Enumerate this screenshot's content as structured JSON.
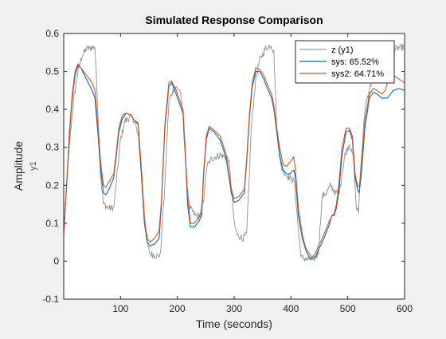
{
  "chart_data": {
    "type": "line",
    "title": "Simulated Response Comparison",
    "xlabel": "Time (seconds)",
    "ylabel": "Amplitude",
    "ylabel_secondary": "y1",
    "xlim": [
      0,
      600
    ],
    "ylim": [
      -0.1,
      0.6
    ],
    "xticks": [
      100,
      200,
      300,
      400,
      500,
      600
    ],
    "yticks": [
      -0.1,
      0,
      0.1,
      0.2,
      0.3,
      0.4,
      0.5,
      0.6
    ],
    "grid": false,
    "legend_position": "top-right",
    "series": [
      {
        "name": "z (y1)",
        "color": "#999999",
        "noisy": true,
        "points": [
          [
            0,
            0.07
          ],
          [
            6,
            0.22
          ],
          [
            12,
            0.34
          ],
          [
            18,
            0.43
          ],
          [
            25,
            0.5
          ],
          [
            32,
            0.54
          ],
          [
            40,
            0.56
          ],
          [
            55,
            0.565
          ],
          [
            60,
            0.4
          ],
          [
            65,
            0.22
          ],
          [
            70,
            0.15
          ],
          [
            80,
            0.14
          ],
          [
            88,
            0.14
          ],
          [
            92,
            0.2
          ],
          [
            100,
            0.32
          ],
          [
            108,
            0.37
          ],
          [
            118,
            0.38
          ],
          [
            125,
            0.37
          ],
          [
            132,
            0.32
          ],
          [
            140,
            0.17
          ],
          [
            146,
            0.05
          ],
          [
            152,
            0.02
          ],
          [
            160,
            0.015
          ],
          [
            170,
            0.015
          ],
          [
            178,
            0.2
          ],
          [
            185,
            0.42
          ],
          [
            195,
            0.46
          ],
          [
            205,
            0.45
          ],
          [
            210,
            0.38
          ],
          [
            216,
            0.22
          ],
          [
            222,
            0.14
          ],
          [
            232,
            0.12
          ],
          [
            240,
            0.12
          ],
          [
            246,
            0.16
          ],
          [
            252,
            0.25
          ],
          [
            260,
            0.27
          ],
          [
            275,
            0.28
          ],
          [
            290,
            0.27
          ],
          [
            295,
            0.2
          ],
          [
            300,
            0.1
          ],
          [
            305,
            0.07
          ],
          [
            315,
            0.06
          ],
          [
            322,
            0.07
          ],
          [
            326,
            0.2
          ],
          [
            330,
            0.35
          ],
          [
            338,
            0.48
          ],
          [
            345,
            0.53
          ],
          [
            355,
            0.56
          ],
          [
            365,
            0.57
          ],
          [
            370,
            0.55
          ],
          [
            375,
            0.35
          ],
          [
            382,
            0.25
          ],
          [
            390,
            0.23
          ],
          [
            398,
            0.22
          ],
          [
            406,
            0.21
          ],
          [
            412,
            0.1
          ],
          [
            418,
            0.01
          ],
          [
            428,
            0.005
          ],
          [
            440,
            0.005
          ],
          [
            448,
            0.02
          ],
          [
            455,
            0.17
          ],
          [
            462,
            0.18
          ],
          [
            470,
            0.2
          ],
          [
            478,
            0.18
          ],
          [
            484,
            0.18
          ],
          [
            488,
            0.21
          ],
          [
            495,
            0.28
          ],
          [
            503,
            0.31
          ],
          [
            510,
            0.27
          ],
          [
            515,
            0.14
          ],
          [
            519,
            0.13
          ],
          [
            522,
            0.23
          ],
          [
            530,
            0.4
          ],
          [
            540,
            0.46
          ],
          [
            548,
            0.52
          ],
          [
            555,
            0.54
          ],
          [
            570,
            0.55
          ],
          [
            585,
            0.56
          ],
          [
            600,
            0.565
          ]
        ]
      },
      {
        "name": "sys: 65.52%",
        "color": "#0072BD",
        "noisy": false,
        "points": [
          [
            0,
            0.07
          ],
          [
            5,
            0.2
          ],
          [
            10,
            0.33
          ],
          [
            15,
            0.43
          ],
          [
            20,
            0.49
          ],
          [
            25,
            0.515
          ],
          [
            30,
            0.51
          ],
          [
            40,
            0.48
          ],
          [
            50,
            0.45
          ],
          [
            55,
            0.43
          ],
          [
            60,
            0.34
          ],
          [
            65,
            0.24
          ],
          [
            70,
            0.18
          ],
          [
            74,
            0.175
          ],
          [
            80,
            0.19
          ],
          [
            88,
            0.22
          ],
          [
            92,
            0.27
          ],
          [
            97,
            0.34
          ],
          [
            103,
            0.375
          ],
          [
            110,
            0.39
          ],
          [
            118,
            0.385
          ],
          [
            125,
            0.37
          ],
          [
            131,
            0.36
          ],
          [
            137,
            0.22
          ],
          [
            142,
            0.1
          ],
          [
            147,
            0.05
          ],
          [
            152,
            0.04
          ],
          [
            160,
            0.045
          ],
          [
            168,
            0.06
          ],
          [
            172,
            0.15
          ],
          [
            178,
            0.35
          ],
          [
            185,
            0.46
          ],
          [
            190,
            0.47
          ],
          [
            198,
            0.44
          ],
          [
            205,
            0.41
          ],
          [
            210,
            0.39
          ],
          [
            214,
            0.28
          ],
          [
            218,
            0.15
          ],
          [
            223,
            0.09
          ],
          [
            230,
            0.09
          ],
          [
            238,
            0.105
          ],
          [
            243,
            0.12
          ],
          [
            246,
            0.22
          ],
          [
            251,
            0.32
          ],
          [
            256,
            0.35
          ],
          [
            265,
            0.34
          ],
          [
            275,
            0.32
          ],
          [
            282,
            0.29
          ],
          [
            286,
            0.27
          ],
          [
            290,
            0.23
          ],
          [
            295,
            0.18
          ],
          [
            300,
            0.155
          ],
          [
            308,
            0.16
          ],
          [
            318,
            0.18
          ],
          [
            322,
            0.26
          ],
          [
            327,
            0.38
          ],
          [
            332,
            0.46
          ],
          [
            338,
            0.5
          ],
          [
            345,
            0.5
          ],
          [
            352,
            0.48
          ],
          [
            360,
            0.45
          ],
          [
            366,
            0.43
          ],
          [
            370,
            0.4
          ],
          [
            375,
            0.34
          ],
          [
            380,
            0.28
          ],
          [
            386,
            0.24
          ],
          [
            392,
            0.23
          ],
          [
            398,
            0.23
          ],
          [
            405,
            0.24
          ],
          [
            408,
            0.22
          ],
          [
            413,
            0.12
          ],
          [
            420,
            0.06
          ],
          [
            426,
            0.03
          ],
          [
            432,
            0.01
          ],
          [
            437,
            0.005
          ],
          [
            443,
            0.01
          ],
          [
            448,
            0.03
          ],
          [
            452,
            0.04
          ],
          [
            458,
            0.06
          ],
          [
            466,
            0.09
          ],
          [
            472,
            0.12
          ],
          [
            476,
            0.12
          ],
          [
            480,
            0.14
          ],
          [
            484,
            0.18
          ],
          [
            490,
            0.28
          ],
          [
            497,
            0.34
          ],
          [
            503,
            0.345
          ],
          [
            508,
            0.32
          ],
          [
            513,
            0.22
          ],
          [
            517,
            0.19
          ],
          [
            520,
            0.18
          ],
          [
            524,
            0.23
          ],
          [
            530,
            0.35
          ],
          [
            538,
            0.43
          ],
          [
            545,
            0.445
          ],
          [
            552,
            0.44
          ],
          [
            560,
            0.43
          ],
          [
            566,
            0.43
          ],
          [
            570,
            0.43
          ],
          [
            575,
            0.44
          ],
          [
            580,
            0.45
          ],
          [
            590,
            0.455
          ],
          [
            600,
            0.45
          ]
        ]
      },
      {
        "name": "sys2: 64.71%",
        "color": "#D95319",
        "noisy": false,
        "points": [
          [
            0,
            0.07
          ],
          [
            5,
            0.2
          ],
          [
            10,
            0.34
          ],
          [
            15,
            0.44
          ],
          [
            20,
            0.5
          ],
          [
            25,
            0.52
          ],
          [
            30,
            0.51
          ],
          [
            40,
            0.49
          ],
          [
            50,
            0.47
          ],
          [
            55,
            0.45
          ],
          [
            60,
            0.36
          ],
          [
            65,
            0.26
          ],
          [
            70,
            0.2
          ],
          [
            74,
            0.195
          ],
          [
            80,
            0.21
          ],
          [
            88,
            0.23
          ],
          [
            92,
            0.28
          ],
          [
            97,
            0.35
          ],
          [
            103,
            0.385
          ],
          [
            110,
            0.39
          ],
          [
            118,
            0.385
          ],
          [
            125,
            0.37
          ],
          [
            131,
            0.365
          ],
          [
            137,
            0.24
          ],
          [
            142,
            0.11
          ],
          [
            147,
            0.06
          ],
          [
            152,
            0.05
          ],
          [
            160,
            0.06
          ],
          [
            168,
            0.08
          ],
          [
            172,
            0.16
          ],
          [
            178,
            0.36
          ],
          [
            185,
            0.47
          ],
          [
            190,
            0.475
          ],
          [
            198,
            0.45
          ],
          [
            205,
            0.42
          ],
          [
            210,
            0.4
          ],
          [
            214,
            0.29
          ],
          [
            218,
            0.17
          ],
          [
            223,
            0.1
          ],
          [
            230,
            0.1
          ],
          [
            238,
            0.115
          ],
          [
            243,
            0.13
          ],
          [
            246,
            0.23
          ],
          [
            251,
            0.33
          ],
          [
            256,
            0.355
          ],
          [
            265,
            0.345
          ],
          [
            275,
            0.33
          ],
          [
            282,
            0.3
          ],
          [
            286,
            0.28
          ],
          [
            290,
            0.24
          ],
          [
            295,
            0.19
          ],
          [
            300,
            0.165
          ],
          [
            308,
            0.17
          ],
          [
            318,
            0.19
          ],
          [
            322,
            0.27
          ],
          [
            327,
            0.39
          ],
          [
            332,
            0.47
          ],
          [
            338,
            0.51
          ],
          [
            345,
            0.505
          ],
          [
            352,
            0.49
          ],
          [
            360,
            0.46
          ],
          [
            366,
            0.44
          ],
          [
            370,
            0.41
          ],
          [
            375,
            0.35
          ],
          [
            380,
            0.3
          ],
          [
            386,
            0.255
          ],
          [
            392,
            0.25
          ],
          [
            398,
            0.26
          ],
          [
            405,
            0.275
          ],
          [
            408,
            0.24
          ],
          [
            413,
            0.14
          ],
          [
            420,
            0.07
          ],
          [
            426,
            0.035
          ],
          [
            432,
            0.02
          ],
          [
            437,
            0.01
          ],
          [
            443,
            0.02
          ],
          [
            448,
            0.04
          ],
          [
            452,
            0.05
          ],
          [
            458,
            0.07
          ],
          [
            466,
            0.1
          ],
          [
            472,
            0.12
          ],
          [
            476,
            0.125
          ],
          [
            480,
            0.15
          ],
          [
            484,
            0.2
          ],
          [
            490,
            0.3
          ],
          [
            497,
            0.35
          ],
          [
            503,
            0.35
          ],
          [
            508,
            0.33
          ],
          [
            513,
            0.23
          ],
          [
            517,
            0.2
          ],
          [
            520,
            0.195
          ],
          [
            524,
            0.25
          ],
          [
            530,
            0.37
          ],
          [
            538,
            0.44
          ],
          [
            545,
            0.455
          ],
          [
            552,
            0.45
          ],
          [
            560,
            0.44
          ],
          [
            566,
            0.45
          ],
          [
            570,
            0.47
          ],
          [
            575,
            0.48
          ],
          [
            580,
            0.49
          ],
          [
            590,
            0.48
          ],
          [
            600,
            0.47
          ]
        ]
      }
    ]
  }
}
